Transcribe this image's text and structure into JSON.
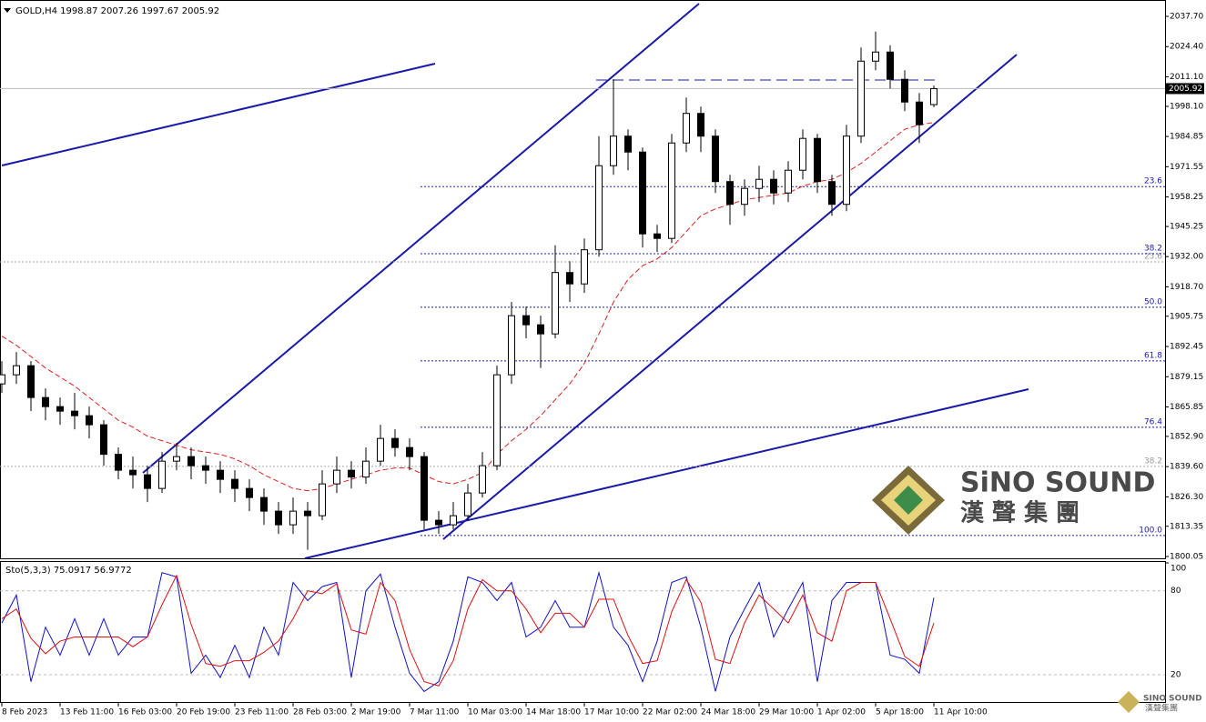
{
  "chart_data": {
    "type": "candlestick",
    "title": "GOLD,H4  1998.87 2007.26 1997.67 2005.92",
    "categories": [
      "8 Feb 2023",
      null,
      null,
      null,
      "13 Feb 11:00",
      null,
      null,
      null,
      "16 Feb 03:00",
      null,
      null,
      null,
      "20 Feb 19:00",
      null,
      null,
      null,
      "23 Feb 11:00",
      null,
      null,
      null,
      "28 Feb 03:00",
      null,
      null,
      null,
      "2 Mar 19:00",
      null,
      null,
      null,
      "7 Mar 11:00",
      null,
      null,
      null,
      "10 Mar 03:00",
      null,
      null,
      null,
      "14 Mar 18:00",
      null,
      null,
      null,
      "17 Mar 10:00",
      null,
      null,
      null,
      "22 Mar 02:00",
      null,
      null,
      null,
      "24 Mar 18:00",
      null,
      null,
      null,
      "29 Mar 10:00",
      null,
      null,
      null,
      "1 Apr 02:00",
      null,
      null,
      null,
      "5 Apr 18:00",
      null,
      null,
      null,
      "11 Apr 10:00"
    ],
    "open": [
      1876,
      1880,
      1884,
      1870,
      1866,
      1864,
      1862,
      1858,
      1845,
      1838,
      1836,
      1830,
      1842,
      1844,
      1840,
      1838,
      1834,
      1830,
      1826,
      1820,
      1814,
      1820,
      1818,
      1832,
      1838,
      1835,
      1842,
      1852,
      1848,
      1844,
      1816,
      1814,
      1818,
      1828,
      1840,
      1880,
      1906,
      1902,
      1898,
      1925,
      1920,
      1935,
      1972,
      1985,
      1978,
      1942,
      1940,
      1982,
      1995,
      1985,
      1965,
      1955,
      1962,
      1966,
      1960,
      1970,
      1984,
      1965,
      1955,
      1985,
      2018,
      2022,
      2010,
      2000,
      1998.87
    ],
    "high": [
      1886,
      1890,
      1886,
      1874,
      1870,
      1872,
      1866,
      1860,
      1848,
      1844,
      1840,
      1846,
      1850,
      1848,
      1844,
      1842,
      1838,
      1834,
      1830,
      1824,
      1826,
      1824,
      1838,
      1844,
      1842,
      1848,
      1858,
      1856,
      1852,
      1846,
      1820,
      1824,
      1832,
      1846,
      1884,
      1912,
      1910,
      1906,
      1937,
      1930,
      1940,
      1985,
      2010,
      1988,
      1980,
      1946,
      1986,
      2002,
      1998,
      1988,
      1968,
      1966,
      1972,
      1970,
      1974,
      1988,
      1986,
      1968,
      1990,
      2024,
      2031,
      2025,
      2014,
      2004,
      2007.26
    ],
    "low": [
      1872,
      1876,
      1864,
      1860,
      1858,
      1856,
      1852,
      1840,
      1834,
      1830,
      1824,
      1828,
      1838,
      1834,
      1832,
      1828,
      1824,
      1820,
      1814,
      1810,
      1810,
      1803,
      1816,
      1828,
      1830,
      1832,
      1840,
      1844,
      1838,
      1812,
      1810,
      1812,
      1816,
      1826,
      1838,
      1876,
      1896,
      1883,
      1896,
      1912,
      1916,
      1932,
      1968,
      1970,
      1936,
      1934,
      1938,
      1978,
      1978,
      1960,
      1946,
      1950,
      1956,
      1955,
      1956,
      1966,
      1960,
      1950,
      1952,
      1982,
      2014,
      2006,
      1996,
      1982,
      1997.67
    ],
    "close": [
      1880,
      1884,
      1870,
      1866,
      1864,
      1862,
      1858,
      1845,
      1838,
      1836,
      1830,
      1842,
      1844,
      1840,
      1838,
      1834,
      1830,
      1826,
      1820,
      1814,
      1820,
      1818,
      1832,
      1838,
      1835,
      1842,
      1852,
      1848,
      1844,
      1816,
      1814,
      1818,
      1828,
      1840,
      1880,
      1906,
      1902,
      1898,
      1925,
      1920,
      1935,
      1972,
      1985,
      1978,
      1942,
      1940,
      1982,
      1995,
      1985,
      1965,
      1955,
      1962,
      1966,
      1960,
      1970,
      1984,
      1965,
      1955,
      1985,
      2018,
      2022,
      2010,
      2000,
      1990,
      2005.92
    ],
    "moving_average": {
      "color": "#e02020",
      "values": [
        1897,
        1893,
        1888,
        1883,
        1879,
        1875,
        1870,
        1865,
        1860,
        1857,
        1853,
        1851,
        1849,
        1847,
        1846,
        1845,
        1843,
        1840,
        1836,
        1833,
        1830,
        1829,
        1830,
        1832,
        1834,
        1836,
        1838,
        1839,
        1839,
        1836,
        1833,
        1832,
        1834,
        1837,
        1845,
        1851,
        1856,
        1862,
        1869,
        1876,
        1885,
        1898,
        1912,
        1922,
        1928,
        1931,
        1936,
        1943,
        1950,
        1953,
        1955,
        1957,
        1958,
        1959,
        1960,
        1963,
        1965,
        1966,
        1969,
        1973,
        1978,
        1983,
        1988,
        1990,
        1991
      ]
    },
    "ylim": [
      1799.25,
      2043.7
    ],
    "yticks": [
      {
        "value": 2037.7,
        "label": "2037.70"
      },
      {
        "value": 2024.4,
        "label": "2024.40"
      },
      {
        "value": 2011.1,
        "label": "2011.10"
      },
      {
        "value": 1998.1,
        "label": "1998.10"
      },
      1984.85,
      1971.55,
      1958.25,
      1945.25,
      {
        "value": 1932,
        "label": "1932.00"
      },
      {
        "value": 1918.7,
        "label": "1918.70"
      },
      1905.75,
      1892.45,
      1879.15,
      1865.85,
      {
        "value": 1852.9,
        "label": "1852.90"
      },
      {
        "value": 1839.6,
        "label": "1839.60"
      },
      {
        "value": 1826.3,
        "label": "1826.30"
      },
      1813.35,
      1800.05
    ],
    "current_price": 2005.92,
    "fib_levels": [
      {
        "ratio": 23.6,
        "price": 1962.8
      },
      {
        "ratio": 38.2,
        "price": 1933.3
      },
      {
        "ratio": {
          "value": 50,
          "label": "50.0"
        },
        "price": 1909.7
      },
      {
        "ratio": 61.8,
        "price": 1886.1
      },
      {
        "ratio": 76.4,
        "price": 1856.9
      },
      {
        "ratio": {
          "value": 100,
          "label": "100.0"
        },
        "price": 1809.3
      }
    ],
    "fib_levels_gray": [
      {
        "ratio": 23.6,
        "price": 1929.7
      },
      {
        "ratio": 38.2,
        "price": 1839.7
      }
    ],
    "stochastic": {
      "label": "Sto(5,3,3) 75.0917 56.9772",
      "ylim": [
        0,
        100
      ],
      "yticks": [
        20,
        80,
        100
      ],
      "series": [
        {
          "color": "#1010d0",
          "values": [
            57,
            77,
            15,
            54,
            34,
            60,
            34,
            60,
            34,
            47,
            47,
            93,
            90,
            21,
            34,
            18,
            41,
            18,
            54,
            34,
            86,
            73,
            83,
            86,
            18,
            80,
            92,
            54,
            21,
            8,
            15,
            44,
            90,
            86,
            73,
            86,
            47,
            54,
            73,
            54,
            54,
            93,
            54,
            41,
            15,
            44,
            86,
            90,
            54,
            8,
            47,
            67,
            86,
            47,
            67,
            86,
            15,
            73,
            86,
            86,
            86,
            34,
            31,
            21,
            75.0917
          ]
        },
        {
          "color": "#e01010",
          "values": [
            60,
            67,
            46,
            35,
            44,
            47,
            47,
            47,
            47,
            40,
            47,
            70,
            91,
            56,
            28,
            26,
            30,
            30,
            36,
            44,
            60,
            80,
            78,
            85,
            52,
            49,
            86,
            73,
            38,
            15,
            12,
            30,
            67,
            88,
            80,
            80,
            67,
            50,
            64,
            64,
            54,
            74,
            74,
            48,
            28,
            30,
            65,
            88,
            72,
            31,
            28,
            57,
            77,
            67,
            57,
            77,
            50,
            44,
            80,
            86,
            86,
            60,
            33,
            26,
            56.9772
          ]
        }
      ]
    }
  },
  "watermark": {
    "brand": "SiNO SOUND",
    "brand_cn": "漢 聲 集 團",
    "small_brand": "SINO SOUND",
    "small_cn": "漢聲集團"
  }
}
